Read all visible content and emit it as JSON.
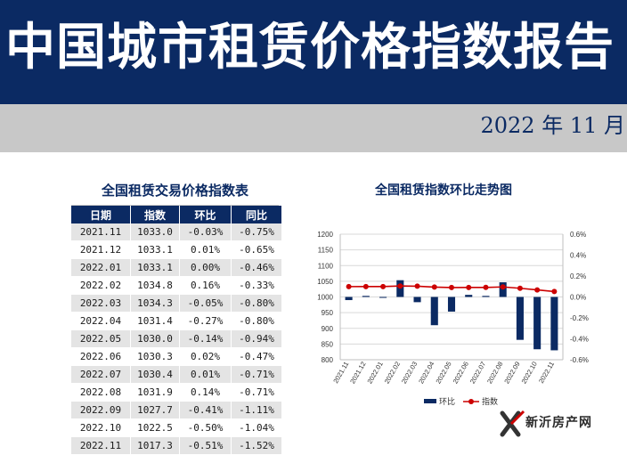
{
  "header": {
    "title": "中国城市租赁价格指数报告",
    "date": "2022 年 11 月"
  },
  "table": {
    "title": "全国租赁交易价格指数表",
    "columns": [
      "日期",
      "指数",
      "环比",
      "同比"
    ],
    "rows": [
      [
        "2021.11",
        "1033.0",
        "-0.03%",
        "-0.75%"
      ],
      [
        "2021.12",
        "1033.1",
        "0.01%",
        "-0.65%"
      ],
      [
        "2022.01",
        "1033.1",
        "0.00%",
        "-0.46%"
      ],
      [
        "2022.02",
        "1034.8",
        "0.16%",
        "-0.33%"
      ],
      [
        "2022.03",
        "1034.3",
        "-0.05%",
        "-0.80%"
      ],
      [
        "2022.04",
        "1031.4",
        "-0.27%",
        "-0.80%"
      ],
      [
        "2022.05",
        "1030.0",
        "-0.14%",
        "-0.94%"
      ],
      [
        "2022.06",
        "1030.3",
        "0.02%",
        "-0.47%"
      ],
      [
        "2022.07",
        "1030.4",
        "0.01%",
        "-0.71%"
      ],
      [
        "2022.08",
        "1031.9",
        "0.14%",
        "-0.71%"
      ],
      [
        "2022.09",
        "1027.7",
        "-0.41%",
        "-1.11%"
      ],
      [
        "2022.10",
        "1022.5",
        "-0.50%",
        "-1.04%"
      ],
      [
        "2022.11",
        "1017.3",
        "-0.51%",
        "-1.52%"
      ]
    ]
  },
  "chart_data": {
    "type": "bar",
    "title": "全国租赁指数环比走势图",
    "categories": [
      "2021.11",
      "2021.12",
      "2022.01",
      "2022.02",
      "2022.03",
      "2022.04",
      "2022.05",
      "2022.06",
      "2022.07",
      "2022.08",
      "2022.09",
      "2022.10",
      "2022.11"
    ],
    "series": [
      {
        "name": "环比",
        "type": "bar",
        "axis": "right",
        "color": "#0b2a63",
        "values": [
          -0.03,
          0.01,
          0.0,
          0.16,
          -0.05,
          -0.27,
          -0.14,
          0.02,
          0.01,
          0.14,
          -0.41,
          -0.5,
          -0.51
        ]
      },
      {
        "name": "指数",
        "type": "line",
        "axis": "left",
        "color": "#cc0000",
        "values": [
          1033.0,
          1033.1,
          1033.1,
          1034.8,
          1034.3,
          1031.4,
          1030.0,
          1030.3,
          1030.4,
          1031.9,
          1027.7,
          1022.5,
          1017.3
        ]
      }
    ],
    "y_left": {
      "ylim": [
        800,
        1200
      ],
      "ticks": [
        "800",
        "850",
        "900",
        "950",
        "1000",
        "1050",
        "1100",
        "1150",
        "1200"
      ]
    },
    "y_right": {
      "ylim": [
        -0.6,
        0.6
      ],
      "ticks": [
        "-0.6%",
        "-0.4%",
        "-0.2%",
        "0.0%",
        "0.2%",
        "0.4%",
        "0.6%"
      ]
    },
    "grid": true,
    "legend_position": "bottom"
  },
  "logo": {
    "text": "新沂房产网",
    "icon": "x-logo-icon"
  }
}
